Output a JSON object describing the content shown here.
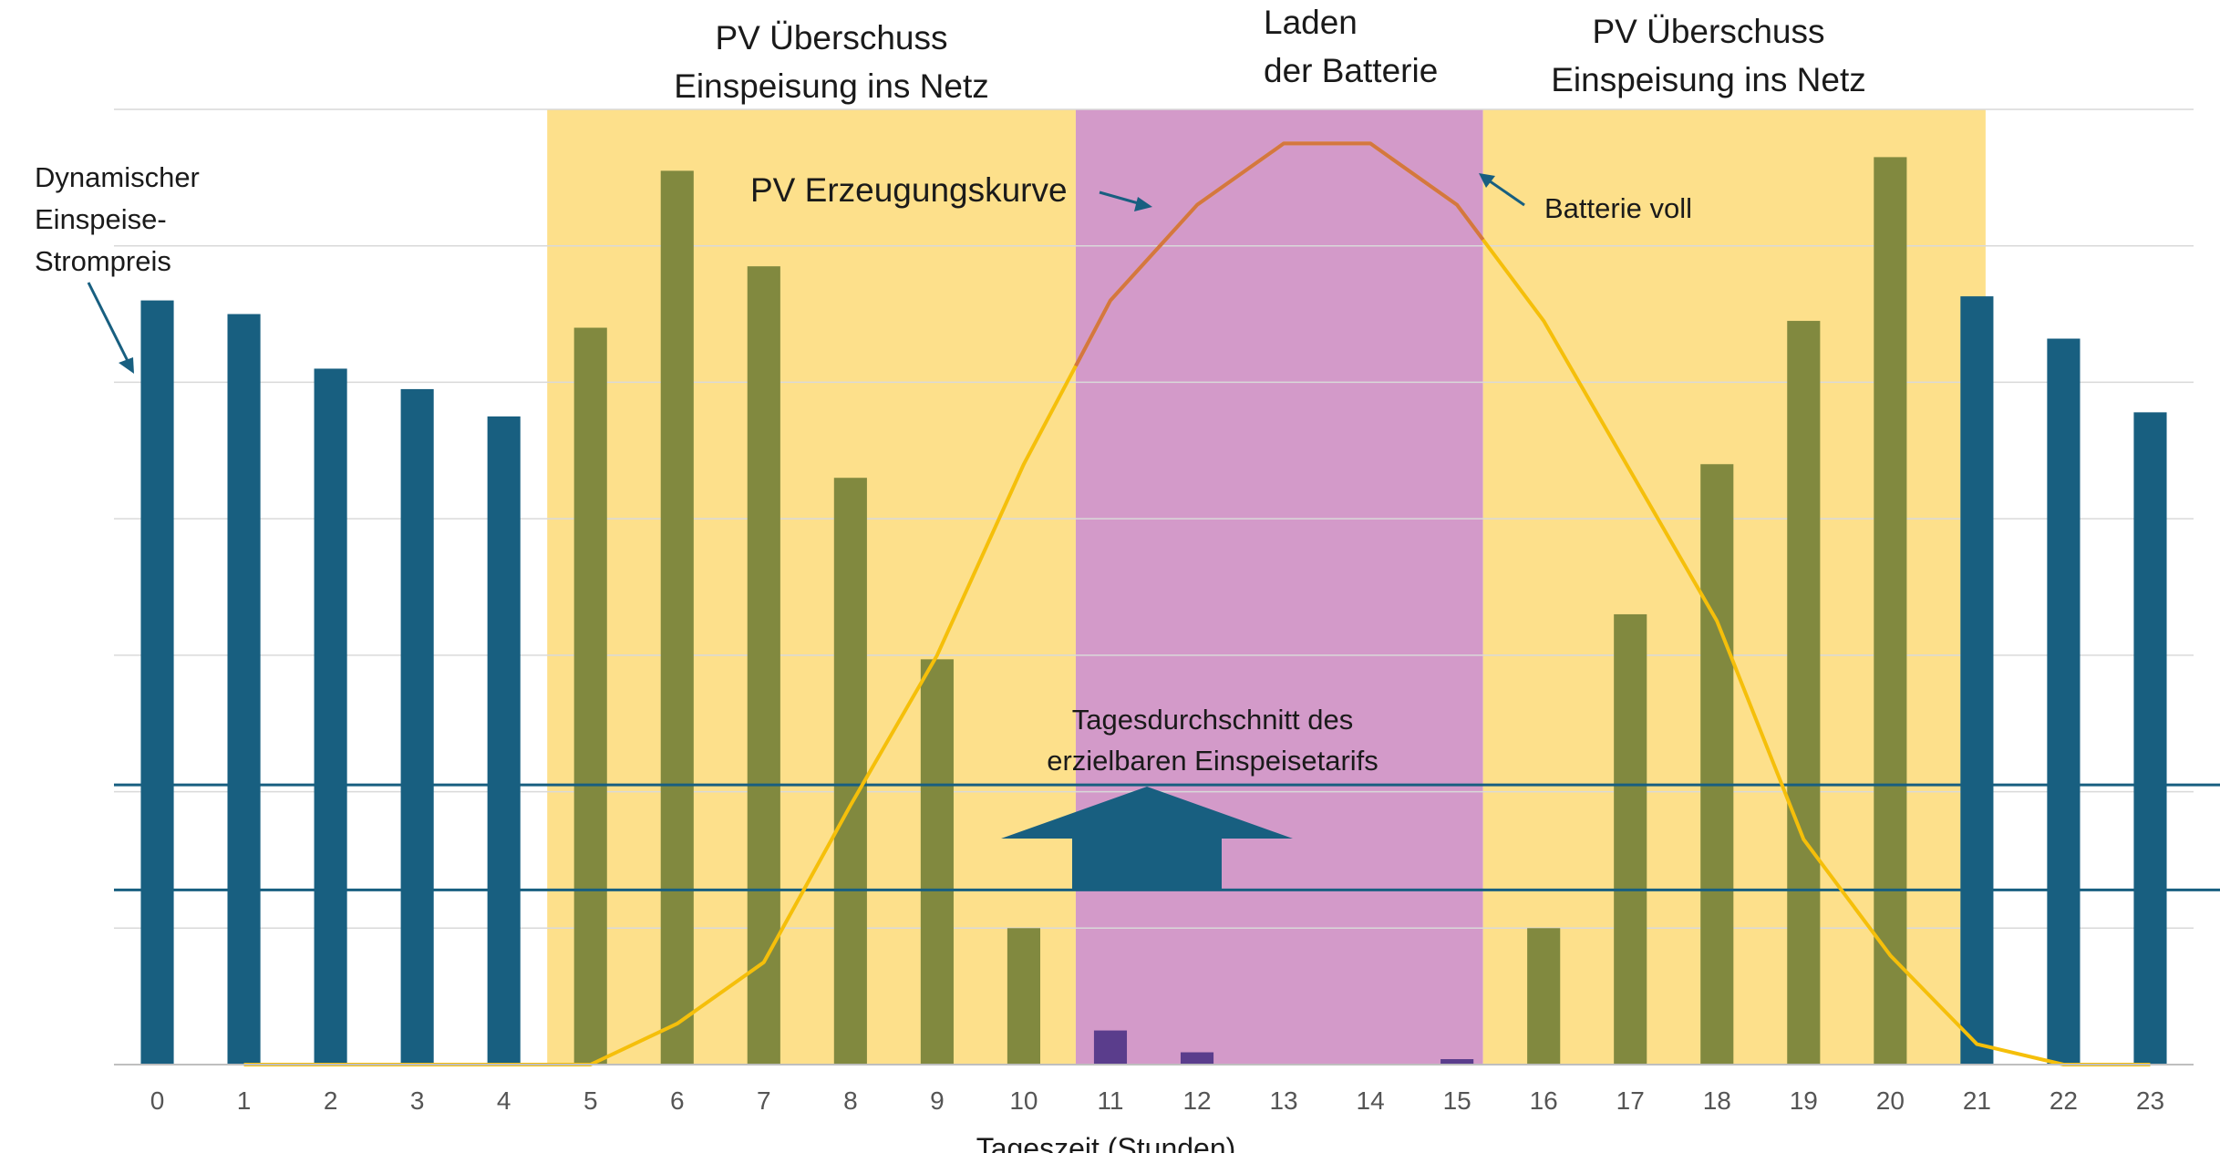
{
  "chart_data": {
    "type": "bar",
    "title": "",
    "xlabel": "Tageszeit (Stunden)",
    "ylabel": "",
    "categories": [
      "0",
      "1",
      "2",
      "3",
      "4",
      "5",
      "6",
      "7",
      "8",
      "9",
      "10",
      "11",
      "12",
      "13",
      "14",
      "15",
      "16",
      "17",
      "18",
      "19",
      "20",
      "21",
      "22",
      "23"
    ],
    "ylim": [
      0,
      7
    ],
    "grid": true,
    "series": [
      {
        "values": [
          5.6,
          5.5,
          5.1,
          4.95,
          4.75,
          5.4,
          6.55,
          5.85,
          4.3,
          2.97,
          1.0,
          0.25,
          0.09,
          0,
          0,
          0.04,
          1.0,
          3.3,
          4.4,
          5.45,
          6.65,
          5.63,
          5.32,
          4.78
        ],
        "colors": [
          "#185f80",
          "#185f80",
          "#185f80",
          "#185f80",
          "#185f80",
          "#81893f",
          "#81893f",
          "#81893f",
          "#81893f",
          "#81893f",
          "#81893f",
          "#5a3d8c",
          "#5a3d8c",
          "#5a3d8c",
          "#5a3d8c",
          "#5a3d8c",
          "#81893f",
          "#81893f",
          "#81893f",
          "#81893f",
          "#81893f",
          "#185f80",
          "#185f80",
          "#185f80"
        ]
      },
      {
        "type": "line",
        "x": [
          1,
          2,
          3,
          4,
          5,
          6,
          7,
          8,
          9,
          10,
          11,
          12,
          13,
          14,
          15,
          16,
          17,
          18,
          19,
          20,
          21,
          22,
          23
        ],
        "values": [
          0,
          0,
          0,
          0,
          0,
          0.3,
          0.75,
          1.9,
          3.0,
          4.4,
          5.6,
          6.3,
          6.75,
          6.75,
          6.3,
          5.45,
          4.35,
          3.25,
          1.65,
          0.8,
          0.15,
          0,
          0
        ],
        "color": "#f5bf0a",
        "segment_color": "#d4773f",
        "segment_from": 10.6,
        "segment_to": 15.3
      }
    ],
    "reference_lines": [
      {
        "y": 2.05,
        "color": "#185f80"
      },
      {
        "y": 1.28,
        "color": "#185f80"
      }
    ],
    "shaded_regions": [
      {
        "from": 4.5,
        "to": 10.6,
        "color": "#fde08b"
      },
      {
        "from": 10.6,
        "to": 15.3,
        "color": "#d39ac9"
      },
      {
        "from": 15.3,
        "to": 21.1,
        "color": "#fde08b"
      }
    ]
  },
  "annotations": {
    "pv_surplus_left_line1": "PV Überschuss",
    "pv_surplus_left_line2": "Einspeisung ins Netz",
    "battery_line1": "Laden",
    "battery_line2": "der Batterie",
    "pv_surplus_right_line1": "PV Überschuss",
    "pv_surplus_right_line2": "Einspeisung ins Netz",
    "dynamic_price_line1": "Dynamischer",
    "dynamic_price_line2": "Einspeise-",
    "dynamic_price_line3": "Strompreis",
    "pv_curve_label": "PV Erzeugungskurve",
    "battery_full": "Batterie voll",
    "avg_line1": "Tagesdurchschnitt des",
    "avg_line2": "erzielbaren Einspeisetarifs"
  },
  "colors": {
    "arrow": "#185f80",
    "gridline": "#d9d9d9",
    "axis": "#bfbfbf"
  }
}
